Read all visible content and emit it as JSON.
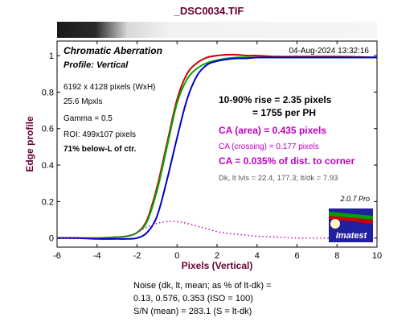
{
  "header": {
    "file_title": "_DSC0034.TIF"
  },
  "info": {
    "title": "Chromatic Aberration",
    "profile": "Profile: Vertical",
    "datetime": "04-Aug-2024 13:32:16",
    "size": "6192 x 4128 pixels (WxH)",
    "mpxls": "25.6 Mpxls",
    "gamma": "Gamma = 0.5",
    "roi": "ROI: 499x107 pixels",
    "below": "71% below-L of ctr.",
    "rise1": "10-90% rise = 2.35 pixels",
    "rise2": "= 1755 per PH",
    "ca_area": "CA (area) = 0.435 pixels",
    "ca_cross": "CA (crossing) = 0.177 pixels",
    "ca_dist": "CA = 0.035% of dist. to corner",
    "levels": "Dk, lt lvls = 22.4, 177.3;  lt/dk = 7.93",
    "version": "2.0.7  Pro",
    "logo_text": "Imatest"
  },
  "footer": {
    "noise1": "Noise (dk, lt, mean; as % of lt-dk) =",
    "noise2": "0.13,  0.576,  0.353  (ISO = 100)",
    "sn": "S/N (mean) = 283.1  (S = lt-dk)"
  },
  "colors": {
    "red": "#cc0000",
    "green": "#00aa00",
    "blue": "#0000cc",
    "ca_area": "#c000c0",
    "levels_text": "#555555",
    "axis_label": "#660033"
  },
  "chart_data": {
    "type": "line",
    "xlabel": "Pixels (Vertical)",
    "ylabel": "Edge profile",
    "xlim": [
      -6,
      10
    ],
    "ylim": [
      -0.05,
      1.08
    ],
    "xticks": [
      -6,
      -4,
      -2,
      0,
      2,
      4,
      6,
      8,
      10
    ],
    "yticks": [
      0,
      0.2,
      0.4,
      0.6,
      0.8,
      1
    ],
    "ytick_labels": [
      "0",
      "0.2",
      "0.4",
      "0.6",
      "0.8",
      "1"
    ],
    "x": [
      -6,
      -5,
      -4,
      -3,
      -2.5,
      -2,
      -1.5,
      -1,
      -0.5,
      0,
      0.5,
      1,
      1.5,
      2,
      2.5,
      3,
      3.5,
      4,
      5,
      6,
      8,
      10
    ],
    "series": [
      {
        "color": "red",
        "values": [
          0,
          0,
          0,
          0.005,
          0.01,
          0.03,
          0.1,
          0.28,
          0.52,
          0.76,
          0.9,
          0.96,
          0.99,
          1.0,
          1.005,
          1.005,
          1.0,
          1.0,
          0.995,
          0.995,
          0.995,
          0.99
        ]
      },
      {
        "color": "green",
        "values": [
          0,
          0,
          0,
          0.005,
          0.01,
          0.03,
          0.09,
          0.26,
          0.5,
          0.74,
          0.87,
          0.93,
          0.96,
          0.975,
          0.985,
          0.99,
          0.99,
          0.99,
          0.99,
          0.99,
          0.99,
          0.99
        ]
      },
      {
        "color": "blue",
        "values": [
          0,
          0,
          -0.005,
          -0.005,
          -0.005,
          0.0,
          0.03,
          0.12,
          0.32,
          0.55,
          0.76,
          0.89,
          0.95,
          0.97,
          0.98,
          0.985,
          0.985,
          0.99,
          0.99,
          0.99,
          0.99,
          0.99
        ]
      },
      {
        "color": "magenta",
        "style": "dotted",
        "values": [
          0,
          0,
          0,
          0.005,
          0.01,
          0.03,
          0.06,
          0.08,
          0.09,
          0.09,
          0.08,
          0.065,
          0.05,
          0.035,
          0.025,
          0.02,
          0.015,
          0.01,
          0.005,
          0,
          0,
          0
        ]
      }
    ]
  }
}
